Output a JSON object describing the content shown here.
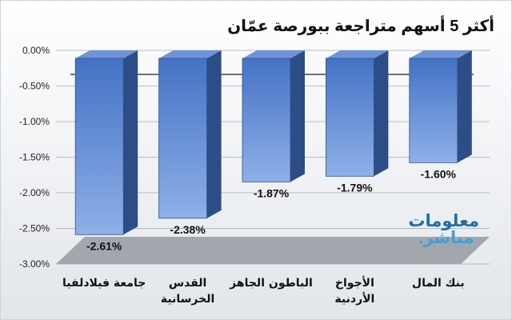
{
  "title": "أكثر 5 أسهم متراجعة ببورصة عمّان",
  "logo": {
    "line1": "معلومات",
    "line2": "مباشر."
  },
  "colors": {
    "bar_front_dark": "#4472c4",
    "bar_front_light": "#8eb0e8",
    "bar_side": "#2c4d86",
    "bar_top": "#6e93d6",
    "floor": "#9aa0a6",
    "grid": "#b7bcc2",
    "axis": "#222222"
  },
  "chart_data": {
    "type": "bar",
    "categories": [
      "جامعة فيلادلفيا",
      "القدس الخرسانية",
      "الباطون الجاهز",
      "الأجواخ الأردنية",
      "بنك المال"
    ],
    "category_lines": [
      [
        "جامعة فيلادلفيا"
      ],
      [
        "القدس",
        "الخرسانية"
      ],
      [
        "الباطون الجاهز"
      ],
      [
        "الأجواخ",
        "الأردنية"
      ],
      [
        "بنك المال"
      ]
    ],
    "values": [
      -2.61,
      -2.38,
      -1.87,
      -1.79,
      -1.6
    ],
    "data_labels": [
      "-2.61%",
      "-2.38%",
      "-1.87%",
      "-1.79%",
      "-1.60%"
    ],
    "yticks": [
      "0.00%",
      "-0.50%",
      "-1.00%",
      "-1.50%",
      "-2.00%",
      "-2.50%",
      "-3.00%"
    ],
    "ylim": [
      -3.0,
      0.0
    ],
    "grid": true,
    "style": "3d-column"
  }
}
